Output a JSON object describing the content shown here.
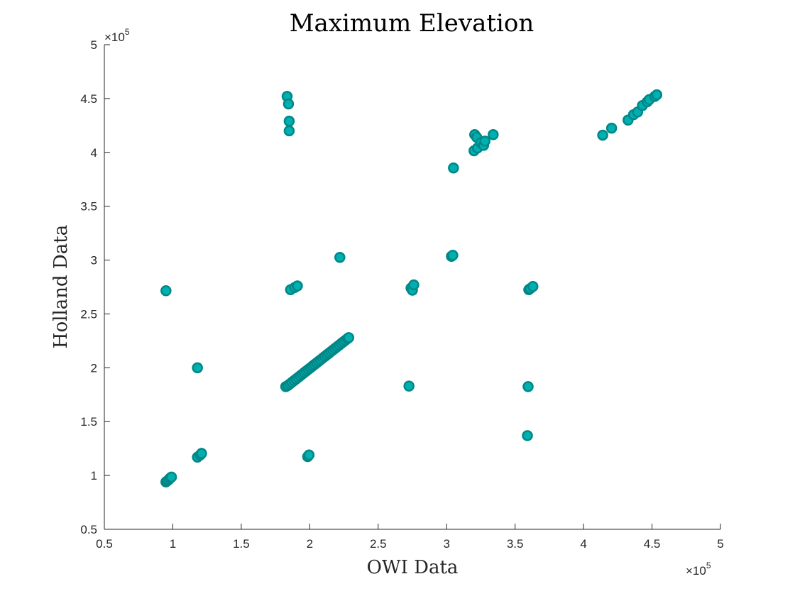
{
  "chart_data": {
    "type": "scatter",
    "title": "Maximum Elevation",
    "xlabel": "OWI Data",
    "ylabel": "Holland Data",
    "xlim": [
      50000,
      500000
    ],
    "ylim": [
      50000,
      500000
    ],
    "x_ticks": [
      0.5,
      1,
      1.5,
      2,
      2.5,
      3,
      3.5,
      4,
      4.5,
      5
    ],
    "y_ticks": [
      0.5,
      1,
      1.5,
      2,
      2.5,
      3,
      3.5,
      4,
      4.5,
      5
    ],
    "x_tick_labels": [
      "0.5",
      "1",
      "1.5",
      "2",
      "2.5",
      "3",
      "3.5",
      "4",
      "4.5",
      "5"
    ],
    "y_tick_labels": [
      "0.5",
      "1",
      "1.5",
      "2",
      "2.5",
      "3",
      "3.5",
      "4",
      "4.5",
      "5"
    ],
    "x_exponent_label": "×10",
    "y_exponent_label": "×10",
    "exponent_power": "5",
    "grid": false,
    "marker_face_color": "#00b0b0",
    "marker_edge_color": "#008787",
    "points": [
      {
        "x": 95000,
        "y": 94000
      },
      {
        "x": 96000,
        "y": 95000
      },
      {
        "x": 97000,
        "y": 96000
      },
      {
        "x": 98000,
        "y": 97500
      },
      {
        "x": 99000,
        "y": 98500
      },
      {
        "x": 95000,
        "y": 271500
      },
      {
        "x": 118000,
        "y": 200000
      },
      {
        "x": 118000,
        "y": 117000
      },
      {
        "x": 120000,
        "y": 119000
      },
      {
        "x": 121000,
        "y": 120500
      },
      {
        "x": 183500,
        "y": 452000
      },
      {
        "x": 184500,
        "y": 445000
      },
      {
        "x": 185000,
        "y": 429000
      },
      {
        "x": 185000,
        "y": 420000
      },
      {
        "x": 186000,
        "y": 272500
      },
      {
        "x": 189000,
        "y": 274500
      },
      {
        "x": 191000,
        "y": 276000
      },
      {
        "x": 182500,
        "y": 182500
      },
      {
        "x": 184000,
        "y": 183500
      },
      {
        "x": 185500,
        "y": 185000
      },
      {
        "x": 187000,
        "y": 186500
      },
      {
        "x": 188500,
        "y": 188000
      },
      {
        "x": 190000,
        "y": 189500
      },
      {
        "x": 191500,
        "y": 191000
      },
      {
        "x": 193000,
        "y": 192500
      },
      {
        "x": 194500,
        "y": 194000
      },
      {
        "x": 196000,
        "y": 195500
      },
      {
        "x": 197500,
        "y": 197000
      },
      {
        "x": 199000,
        "y": 198500
      },
      {
        "x": 200500,
        "y": 200000
      },
      {
        "x": 202000,
        "y": 201500
      },
      {
        "x": 203500,
        "y": 203000
      },
      {
        "x": 205000,
        "y": 204500
      },
      {
        "x": 206500,
        "y": 206000
      },
      {
        "x": 208000,
        "y": 207500
      },
      {
        "x": 209500,
        "y": 209000
      },
      {
        "x": 211000,
        "y": 210500
      },
      {
        "x": 212500,
        "y": 212000
      },
      {
        "x": 214000,
        "y": 213500
      },
      {
        "x": 215500,
        "y": 215000
      },
      {
        "x": 217000,
        "y": 216500
      },
      {
        "x": 218500,
        "y": 218000
      },
      {
        "x": 220000,
        "y": 219500
      },
      {
        "x": 221500,
        "y": 221000
      },
      {
        "x": 223000,
        "y": 222500
      },
      {
        "x": 224500,
        "y": 224000
      },
      {
        "x": 226000,
        "y": 225500
      },
      {
        "x": 227500,
        "y": 227000
      },
      {
        "x": 228500,
        "y": 228000
      },
      {
        "x": 198500,
        "y": 117500
      },
      {
        "x": 199500,
        "y": 119000
      },
      {
        "x": 222000,
        "y": 302500
      },
      {
        "x": 272500,
        "y": 183000
      },
      {
        "x": 274000,
        "y": 274000
      },
      {
        "x": 275000,
        "y": 272000
      },
      {
        "x": 276000,
        "y": 277000
      },
      {
        "x": 303500,
        "y": 303500
      },
      {
        "x": 304500,
        "y": 304500
      },
      {
        "x": 305000,
        "y": 385500
      },
      {
        "x": 320000,
        "y": 401500
      },
      {
        "x": 320500,
        "y": 416500
      },
      {
        "x": 322000,
        "y": 414000
      },
      {
        "x": 322500,
        "y": 404000
      },
      {
        "x": 325000,
        "y": 409000
      },
      {
        "x": 327000,
        "y": 406500
      },
      {
        "x": 328000,
        "y": 410500
      },
      {
        "x": 334000,
        "y": 416500
      },
      {
        "x": 359000,
        "y": 137000
      },
      {
        "x": 359500,
        "y": 182500
      },
      {
        "x": 360000,
        "y": 272500
      },
      {
        "x": 361000,
        "y": 273500
      },
      {
        "x": 363000,
        "y": 275500
      },
      {
        "x": 414000,
        "y": 416000
      },
      {
        "x": 420500,
        "y": 422500
      },
      {
        "x": 432500,
        "y": 430000
      },
      {
        "x": 436500,
        "y": 435000
      },
      {
        "x": 439500,
        "y": 437500
      },
      {
        "x": 443000,
        "y": 443500
      },
      {
        "x": 446500,
        "y": 447000
      },
      {
        "x": 448000,
        "y": 449000
      },
      {
        "x": 452000,
        "y": 452000
      },
      {
        "x": 453500,
        "y": 453500
      }
    ]
  }
}
